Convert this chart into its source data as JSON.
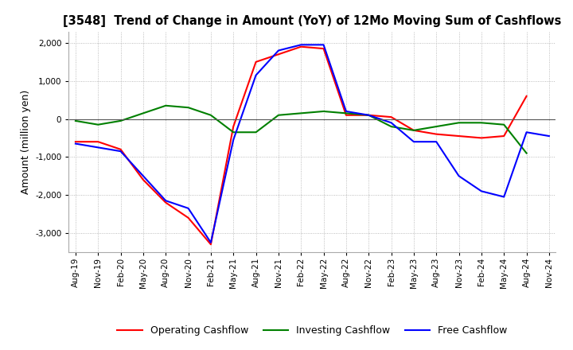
{
  "title": "[3548]  Trend of Change in Amount (YoY) of 12Mo Moving Sum of Cashflows",
  "ylabel": "Amount (million yen)",
  "ylim": [
    -3500,
    2300
  ],
  "yticks": [
    -3000,
    -2000,
    -1000,
    0,
    1000,
    2000
  ],
  "x_labels": [
    "Aug-19",
    "Nov-19",
    "Feb-20",
    "May-20",
    "Aug-20",
    "Nov-20",
    "Feb-21",
    "May-21",
    "Aug-21",
    "Nov-21",
    "Feb-22",
    "May-22",
    "Aug-22",
    "Nov-22",
    "Feb-23",
    "May-23",
    "Aug-23",
    "Nov-23",
    "Feb-24",
    "May-24",
    "Aug-24",
    "Nov-24"
  ],
  "operating": [
    -600,
    -600,
    -800,
    -1600,
    -2200,
    -2600,
    -3300,
    -200,
    1500,
    1700,
    1900,
    1850,
    100,
    100,
    50,
    -300,
    -400,
    -450,
    -500,
    -450,
    600,
    null
  ],
  "investing": [
    -50,
    -150,
    -50,
    150,
    350,
    300,
    100,
    -350,
    -350,
    100,
    150,
    200,
    150,
    100,
    -200,
    -300,
    -200,
    -100,
    -100,
    -150,
    -900,
    null
  ],
  "free": [
    -650,
    -750,
    -850,
    -1500,
    -2150,
    -2350,
    -3250,
    -550,
    1150,
    1800,
    1950,
    1950,
    200,
    100,
    -100,
    -600,
    -600,
    -1500,
    -1900,
    -2050,
    -350,
    -450
  ],
  "operating_color": "#ff0000",
  "investing_color": "#008000",
  "free_color": "#0000ff",
  "bg_color": "#ffffff",
  "grid_color": "#aaaaaa"
}
